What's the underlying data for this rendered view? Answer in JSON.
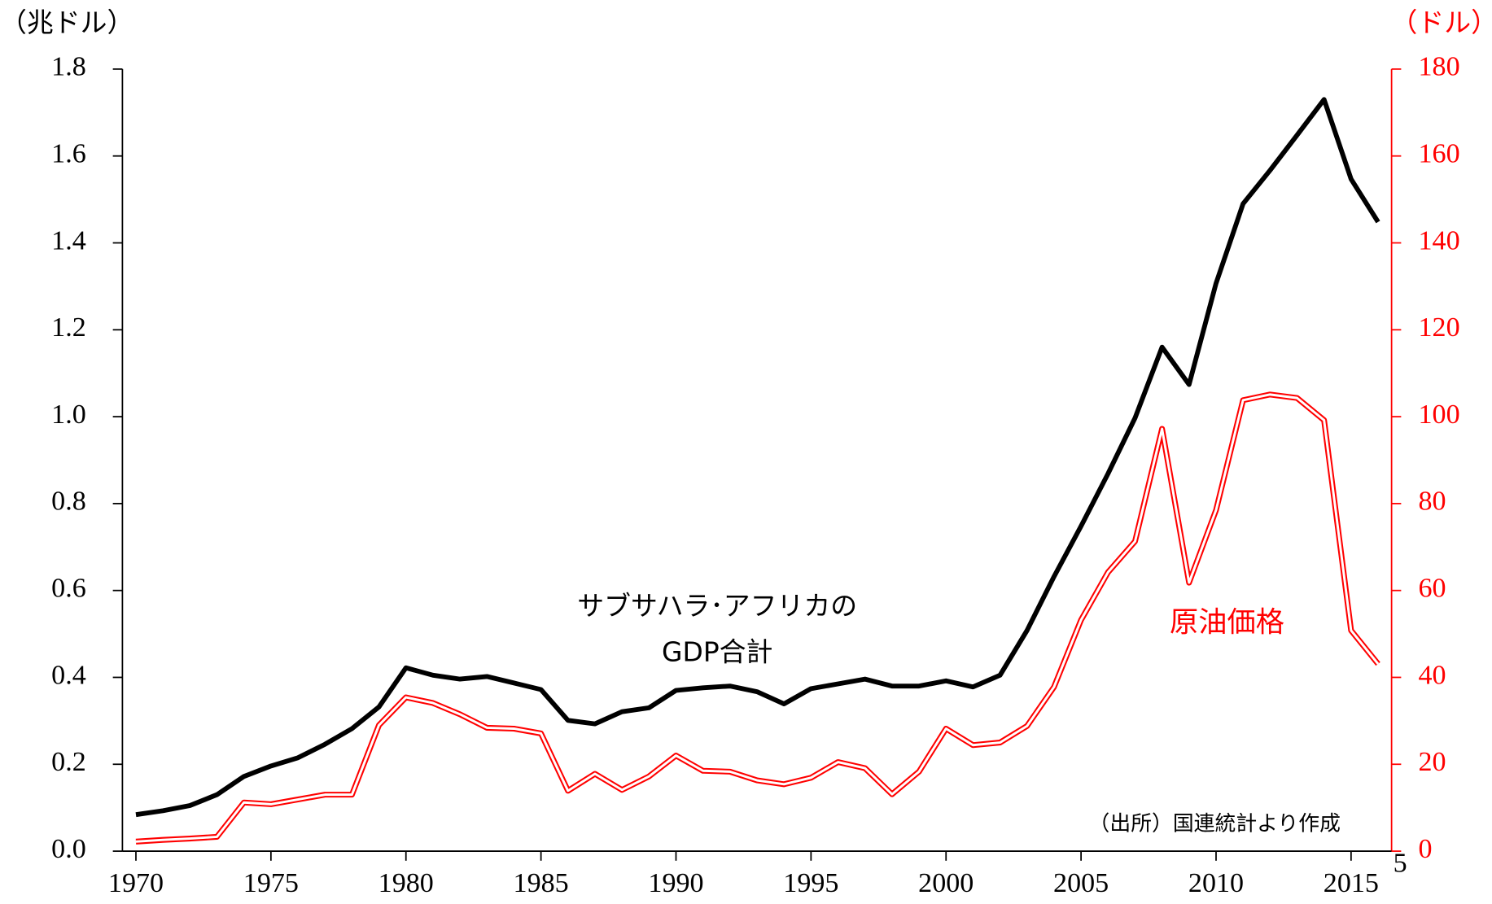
{
  "chart_data": {
    "type": "line",
    "x": [
      1970,
      1971,
      1972,
      1973,
      1974,
      1975,
      1976,
      1977,
      1978,
      1979,
      1980,
      1981,
      1982,
      1983,
      1984,
      1985,
      1986,
      1987,
      1988,
      1989,
      1990,
      1991,
      1992,
      1993,
      1994,
      1995,
      1996,
      1997,
      1998,
      1999,
      2000,
      2001,
      2002,
      2003,
      2004,
      2005,
      2006,
      2007,
      2008,
      2009,
      2010,
      2011,
      2012,
      2013,
      2014,
      2015,
      2016
    ],
    "series": [
      {
        "label_lines": [
          "サブサハラ･アフリカの",
          "GDP合計"
        ],
        "color": "#000000",
        "axis": "y",
        "values": [
          0.084,
          0.093,
          0.105,
          0.13,
          0.172,
          0.196,
          0.215,
          0.246,
          0.282,
          0.332,
          0.422,
          0.405,
          0.396,
          0.402,
          0.387,
          0.372,
          0.301,
          0.293,
          0.321,
          0.33,
          0.37,
          0.376,
          0.38,
          0.367,
          0.339,
          0.374,
          0.385,
          0.396,
          0.38,
          0.38,
          0.392,
          0.378,
          0.405,
          0.508,
          0.632,
          0.748,
          0.869,
          0.997,
          1.16,
          1.074,
          1.307,
          1.49,
          1.567,
          1.648,
          1.73,
          1.547,
          1.448
        ]
      },
      {
        "name": "原油価格",
        "color": "#ff0000",
        "axis": "y2",
        "values": [
          2.2,
          2.6,
          2.9,
          3.3,
          11.2,
          10.8,
          11.9,
          13,
          13,
          29,
          35.4,
          34.1,
          31.5,
          28.4,
          28.2,
          27.1,
          13.9,
          17.8,
          14.1,
          17.2,
          22,
          18.5,
          18.3,
          16.3,
          15.4,
          16.9,
          20.5,
          19.1,
          13.1,
          18.3,
          28.2,
          24.4,
          25,
          28.8,
          37.8,
          53.2,
          64.2,
          71.3,
          97.2,
          61.8,
          78.5,
          103.8,
          105.1,
          104.3,
          99.2,
          50.8,
          43.1
        ]
      }
    ],
    "ylabel": "（兆ドル）",
    "y2label": "（ドル）",
    "source": "（出所）国連統計より作成",
    "stray_label": "5",
    "xlim": [
      1969.5,
      2016.5
    ],
    "xticks": [
      1970,
      1975,
      1980,
      1985,
      1990,
      1995,
      2000,
      2005,
      2010,
      2015
    ],
    "ylim": [
      0,
      1.8
    ],
    "yticks": [
      {
        "value": 0,
        "label": "0.0"
      },
      {
        "value": 0.2,
        "label": "0.2"
      },
      {
        "value": 0.4,
        "label": "0.4"
      },
      {
        "value": 0.6,
        "label": "0.6"
      },
      {
        "value": 0.8,
        "label": "0.8"
      },
      {
        "value": 1,
        "label": "1.0"
      },
      {
        "value": 1.2,
        "label": "1.2"
      },
      {
        "value": 1.4,
        "label": "1.4"
      },
      {
        "value": 1.6,
        "label": "1.6"
      },
      {
        "value": 1.8,
        "label": "1.8"
      }
    ],
    "y2lim": [
      0,
      180
    ],
    "y2ticks": [
      0,
      20,
      40,
      60,
      80,
      100,
      120,
      140,
      160,
      180
    ],
    "grid": false
  }
}
